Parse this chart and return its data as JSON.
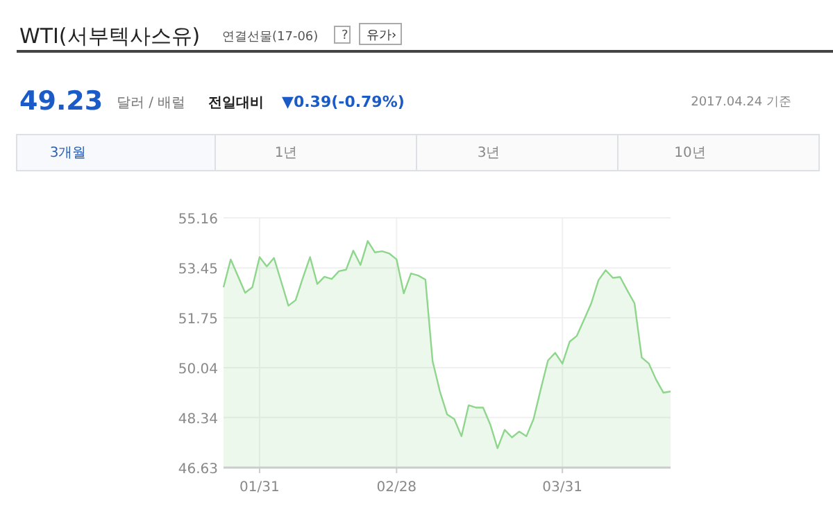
{
  "chart_data": {
    "type": "area",
    "title": "WTI(서부텍사스유)",
    "annotations": [
      "연결선물(17-06)",
      "?",
      "유가›",
      "49.23",
      "달러 / 배럴",
      "전일대비",
      "▼0.39(-0.79%)",
      "2017.04.24 기준",
      "3개월",
      "1년",
      "3년",
      "10년"
    ],
    "categories": [
      null,
      null,
      null,
      null,
      null,
      "01/31",
      null,
      null,
      null,
      null,
      null,
      null,
      null,
      null,
      null,
      null,
      null,
      null,
      null,
      null,
      null,
      null,
      null,
      null,
      "02/28",
      null,
      null,
      null,
      null,
      null,
      null,
      null,
      null,
      null,
      null,
      null,
      null,
      null,
      null,
      null,
      null,
      null,
      null,
      null,
      null,
      null,
      null,
      "03/31",
      null,
      null,
      null,
      null,
      null,
      null,
      null,
      null,
      null,
      null,
      null,
      null,
      null,
      null,
      null
    ],
    "series": [
      {
        "color": "#8ed68c",
        "values": [
          52.79,
          53.74,
          53.17,
          52.6,
          52.79,
          53.82,
          53.5,
          53.79,
          52.98,
          52.16,
          52.35,
          53.11,
          53.82,
          52.9,
          53.15,
          53.07,
          53.34,
          53.39,
          54.04,
          53.55,
          54.37,
          53.98,
          54.02,
          53.94,
          53.74,
          52.58,
          53.26,
          53.19,
          53.05,
          50.26,
          49.24,
          48.45,
          48.29,
          47.7,
          48.76,
          48.68,
          48.68,
          48.1,
          47.29,
          47.92,
          47.66,
          47.86,
          47.7,
          48.29,
          49.31,
          50.29,
          50.55,
          50.18,
          50.93,
          51.13,
          51.68,
          52.24,
          53.03,
          53.37,
          53.11,
          53.14,
          52.68,
          52.24,
          50.39,
          50.18,
          49.63,
          49.19,
          49.23
        ]
      }
    ],
    "ylim": [
      46.63,
      55.16
    ],
    "yticks": [
      46.63,
      48.34,
      50.04,
      51.75,
      53.45,
      55.16
    ],
    "grid": true
  }
}
